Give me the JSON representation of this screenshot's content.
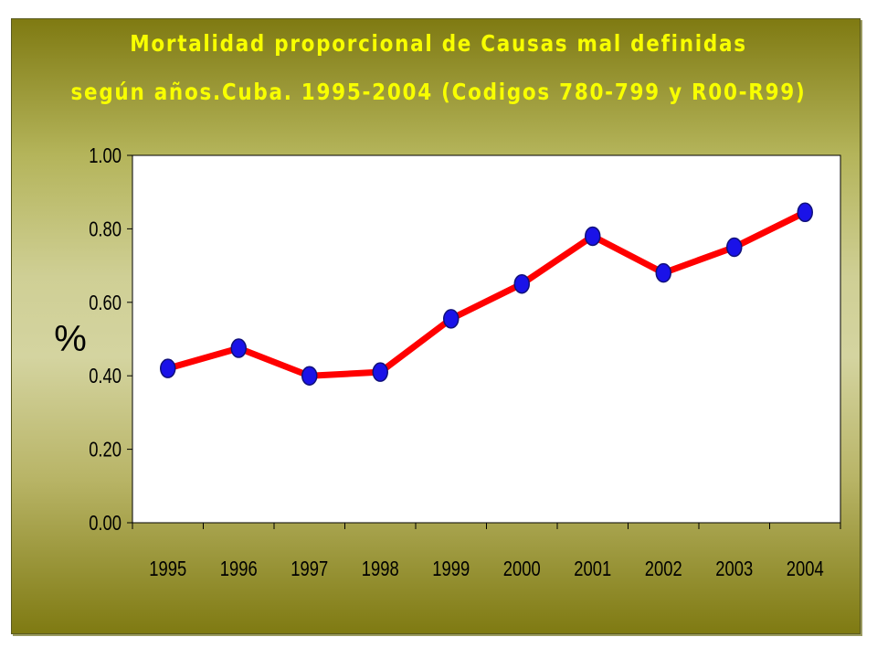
{
  "chart_data": {
    "type": "line",
    "title_line1": "Mortalidad proporcional de Causas mal definidas",
    "title_line2": "según años.Cuba. 1995-2004 (Codigos 780-799 y R00-R99)",
    "xlabel": "",
    "ylabel": "%",
    "categories": [
      "1995",
      "1996",
      "1997",
      "1998",
      "1999",
      "2000",
      "2001",
      "2002",
      "2003",
      "2004"
    ],
    "series": [
      {
        "values": [
          0.42,
          0.475,
          0.4,
          0.41,
          0.555,
          0.65,
          0.78,
          0.68,
          0.75,
          0.845
        ]
      }
    ],
    "yticks": [
      "0.00",
      "0.20",
      "0.40",
      "0.60",
      "0.80",
      "1.00"
    ],
    "ylim": [
      0,
      1
    ],
    "grid": false,
    "legend": "none",
    "colors": {
      "line": "#ff0000",
      "marker_fill": "#1a12e8",
      "marker_stroke": "#10107a",
      "title": "#f8ff00",
      "plot_background": "#ffffff",
      "frame_top": "#7f7a12",
      "frame_middle": "#d4d4a0"
    }
  }
}
